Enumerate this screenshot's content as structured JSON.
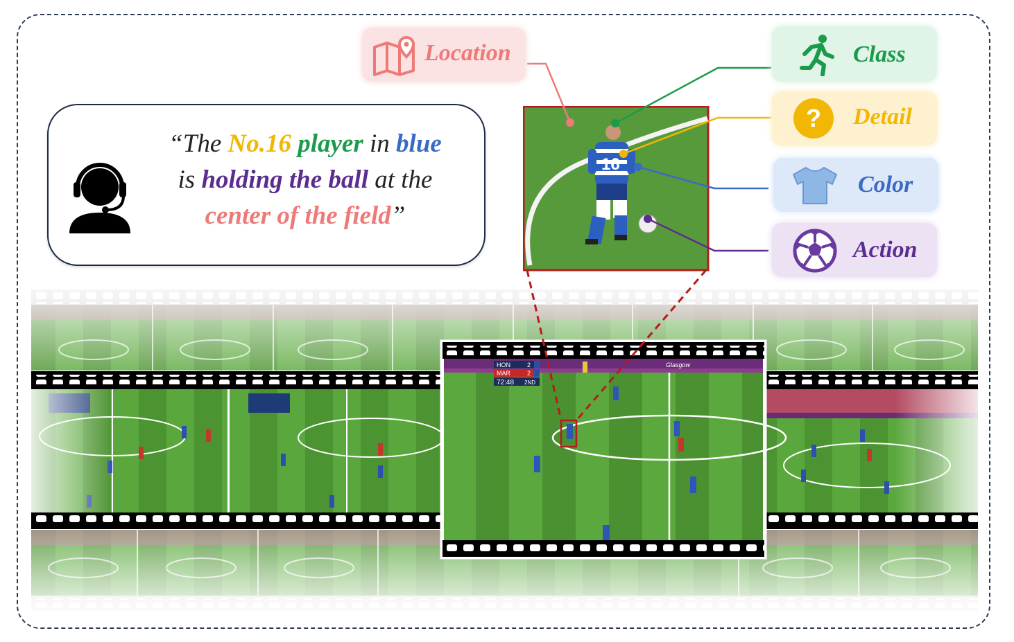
{
  "quote": {
    "open": "“The ",
    "number": "No.16",
    "player": "player",
    "in": " in ",
    "blue": "blue",
    "is": "is ",
    "action": "holding the ball",
    "at": " at the",
    "location": "center of the field",
    "close": "”"
  },
  "tags": {
    "location": "Location",
    "class": "Class",
    "detail": "Detail",
    "color": "Color",
    "action": "Action"
  },
  "scoreboard": {
    "team1": "HON",
    "score1": "2",
    "team2": "MAR",
    "score2": "2",
    "clock": "72:48",
    "period": "2ND",
    "banner": "Glasgow"
  },
  "jersey_number": "16",
  "colors": {
    "location": "#ee7a78",
    "class": "#1a9b4c",
    "detail": "#f2b705",
    "color": "#3a6bc4",
    "action": "#5b2d8f",
    "pitch": "#4e9a35",
    "zoom_box": "#b71c1c"
  },
  "icons": {
    "speaker": "headset-user-icon",
    "location": "map-pin-icon",
    "class": "running-person-icon",
    "detail": "question-mark-icon",
    "color": "tshirt-icon",
    "action": "soccer-ball-icon"
  }
}
